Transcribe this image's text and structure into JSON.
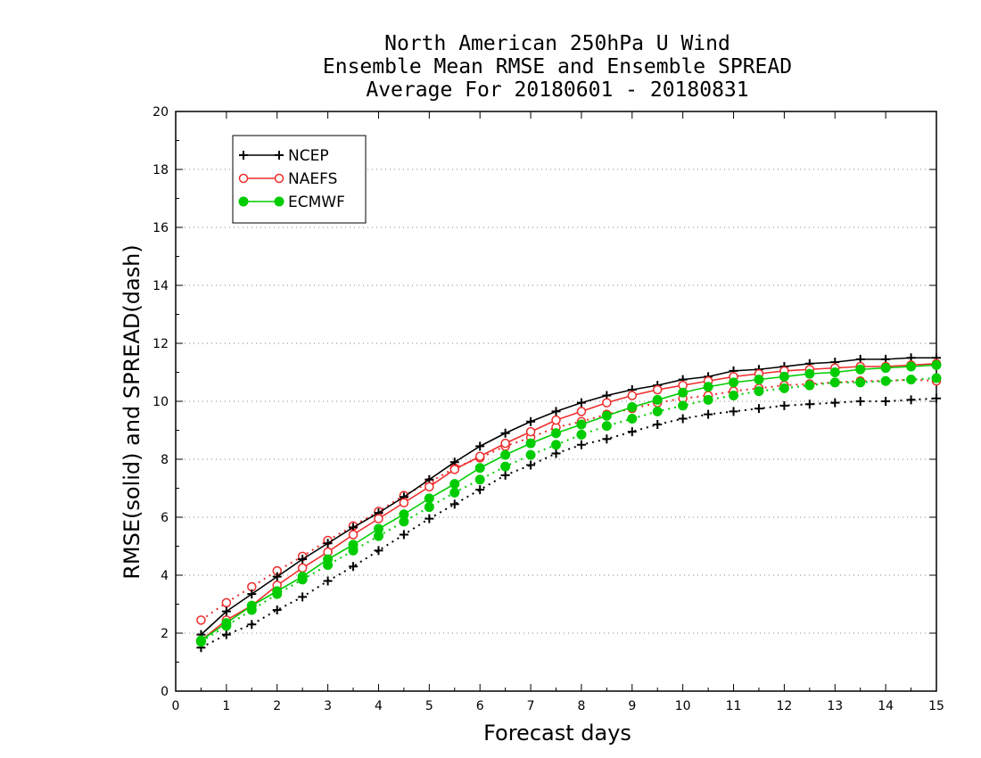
{
  "chart_data": {
    "type": "line",
    "title": [
      "North American 250hPa U Wind",
      "Ensemble Mean RMSE and Ensemble SPREAD",
      "Average For 20180601 - 20180831"
    ],
    "xlabel": "Forecast days",
    "ylabel": "RMSE(solid) and SPREAD(dash)",
    "xlim": [
      0,
      15
    ],
    "ylim": [
      0,
      20
    ],
    "xticks": [
      "0",
      "1",
      "2",
      "3",
      "4",
      "5",
      "6",
      "7",
      "8",
      "9",
      "10",
      "11",
      "12",
      "13",
      "14",
      "15"
    ],
    "yticks": [
      "0",
      "2",
      "4",
      "6",
      "8",
      "10",
      "12",
      "14",
      "16",
      "18",
      "20"
    ],
    "grid": "horizontal dotted",
    "legend_position": "top-left",
    "x": [
      0.5,
      1,
      1.5,
      2,
      2.5,
      3,
      3.5,
      4,
      4.5,
      5,
      5.5,
      6,
      6.5,
      7,
      7.5,
      8,
      8.5,
      9,
      9.5,
      10,
      10.5,
      11,
      11.5,
      12,
      12.5,
      13,
      13.5,
      14,
      14.5,
      15
    ],
    "series": [
      {
        "name": "NCEP",
        "color": "#000000",
        "marker": "plus",
        "rmse": [
          1.95,
          2.75,
          3.35,
          3.95,
          4.55,
          5.1,
          5.65,
          6.15,
          6.7,
          7.3,
          7.9,
          8.45,
          8.9,
          9.3,
          9.65,
          9.95,
          10.2,
          10.4,
          10.55,
          10.75,
          10.85,
          11.05,
          11.1,
          11.2,
          11.3,
          11.35,
          11.45,
          11.45,
          11.5,
          11.5
        ],
        "spread": [
          1.5,
          1.95,
          2.3,
          2.8,
          3.25,
          3.8,
          4.3,
          4.85,
          5.4,
          5.95,
          6.45,
          6.95,
          7.45,
          7.8,
          8.2,
          8.5,
          8.7,
          8.95,
          9.2,
          9.4,
          9.55,
          9.65,
          9.75,
          9.85,
          9.9,
          9.95,
          10.0,
          10.0,
          10.05,
          10.1
        ]
      },
      {
        "name": "NAEFS",
        "color": "#ee2c2c",
        "marker": "open-circle",
        "rmse": [
          1.75,
          2.45,
          2.95,
          3.65,
          4.25,
          4.8,
          5.4,
          5.95,
          6.5,
          7.05,
          7.65,
          8.1,
          8.55,
          8.95,
          9.35,
          9.65,
          9.95,
          10.2,
          10.4,
          10.55,
          10.7,
          10.85,
          10.95,
          11.05,
          11.1,
          11.15,
          11.2,
          11.2,
          11.25,
          11.3
        ],
        "spread": [
          2.45,
          3.05,
          3.6,
          4.15,
          4.65,
          5.2,
          5.7,
          6.2,
          6.75,
          7.2,
          7.7,
          8.05,
          8.45,
          8.75,
          9.1,
          9.3,
          9.55,
          9.75,
          9.95,
          10.1,
          10.2,
          10.35,
          10.45,
          10.55,
          10.6,
          10.65,
          10.7,
          10.7,
          10.75,
          10.7
        ]
      },
      {
        "name": "ECMWF",
        "color": "#00cc00",
        "marker": "filled-circle",
        "rmse": [
          1.75,
          2.35,
          2.95,
          3.45,
          3.95,
          4.55,
          5.05,
          5.6,
          6.1,
          6.65,
          7.15,
          7.7,
          8.15,
          8.55,
          8.9,
          9.2,
          9.5,
          9.8,
          10.05,
          10.3,
          10.5,
          10.65,
          10.75,
          10.85,
          10.95,
          11.0,
          11.1,
          11.15,
          11.2,
          11.25
        ],
        "spread": [
          1.7,
          2.25,
          2.8,
          3.35,
          3.85,
          4.35,
          4.85,
          5.35,
          5.85,
          6.35,
          6.85,
          7.3,
          7.75,
          8.15,
          8.5,
          8.85,
          9.15,
          9.4,
          9.65,
          9.85,
          10.05,
          10.2,
          10.35,
          10.45,
          10.55,
          10.65,
          10.65,
          10.7,
          10.75,
          10.8
        ]
      }
    ]
  }
}
